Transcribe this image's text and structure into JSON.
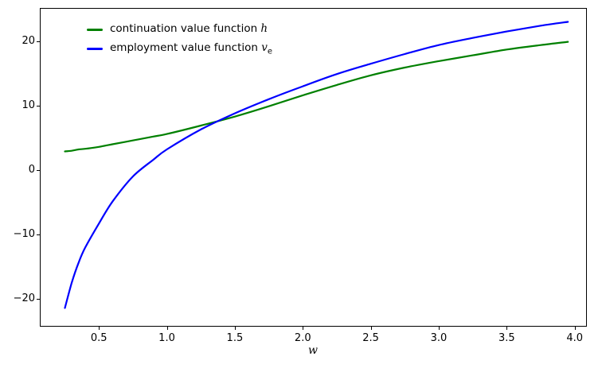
{
  "figure": {
    "background": "#ffffff",
    "axis_color": "#000000"
  },
  "legend": {
    "items": [
      {
        "text": "continuation value function ",
        "math": "h",
        "sub": "",
        "color": "#008000"
      },
      {
        "text": "employment value function ",
        "math": "v",
        "sub": "e",
        "color": "#0000ff"
      }
    ]
  },
  "chart_data": {
    "type": "line",
    "title": "",
    "xlabel": "w",
    "ylabel": "",
    "grid": false,
    "legend_position": "upper left",
    "xlim": [
      0.0715,
      4.0835
    ],
    "ylim": [
      -24.17,
      25.03
    ],
    "x_tick_values": [
      0.5,
      1.0,
      1.5,
      2.0,
      2.5,
      3.0,
      3.5,
      4.0
    ],
    "x_tick_labels": [
      "0.5",
      "1.0",
      "1.5",
      "2.0",
      "2.5",
      "3.0",
      "3.5",
      "4.0"
    ],
    "y_tick_values": [
      -20,
      -10,
      0,
      10,
      20
    ],
    "y_tick_labels": [
      "−20",
      "−10",
      "0",
      "10",
      "20"
    ],
    "x": [
      0.25,
      0.3,
      0.35,
      0.4,
      0.5,
      0.6,
      0.75,
      0.9,
      1.0,
      1.25,
      1.5,
      1.75,
      2.0,
      2.25,
      2.5,
      2.75,
      3.0,
      3.25,
      3.5,
      3.75,
      3.95
    ],
    "series": [
      {
        "name": "continuation value function h",
        "color": "#008000",
        "line_width": 2.2,
        "values": [
          2.9,
          3.0,
          3.2,
          3.3,
          3.6,
          4.0,
          4.6,
          5.2,
          5.6,
          6.9,
          8.3,
          9.9,
          11.6,
          13.2,
          14.7,
          15.9,
          16.9,
          17.8,
          18.7,
          19.4,
          19.9
        ]
      },
      {
        "name": "employment value function v_e",
        "color": "#0000ff",
        "line_width": 2.2,
        "values": [
          -21.4,
          -17.5,
          -14.4,
          -12.0,
          -8.3,
          -4.9,
          -1.0,
          1.6,
          3.2,
          6.3,
          8.8,
          11.0,
          13.0,
          14.9,
          16.5,
          18.0,
          19.4,
          20.5,
          21.5,
          22.4,
          23.0
        ]
      }
    ]
  }
}
